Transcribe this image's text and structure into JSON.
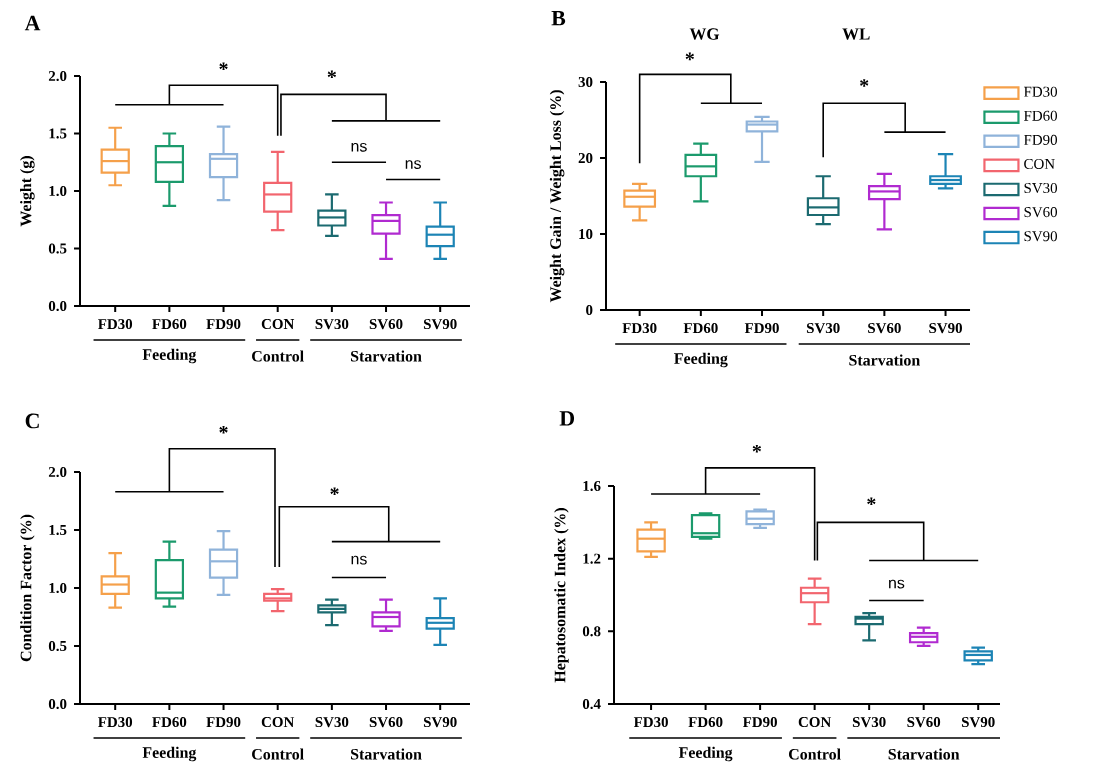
{
  "chart_data": [
    {
      "type": "box",
      "title": "A",
      "ylabel": "Weight (g)",
      "categories": [
        "FD30",
        "FD60",
        "FD90",
        "CON",
        "SV30",
        "SV60",
        "SV90"
      ],
      "series": [
        {
          "name": "FD30",
          "color": "#f5a04a",
          "boxes": [
            {
              "low": 1.05,
              "q1": 1.16,
              "median": 1.26,
              "q3": 1.36,
              "high": 1.55
            },
            null,
            null,
            null,
            null,
            null,
            null
          ]
        },
        {
          "name": "FD60",
          "color": "#1b9a6c",
          "boxes": [
            null,
            {
              "low": 0.87,
              "q1": 1.08,
              "median": 1.25,
              "q3": 1.39,
              "high": 1.5
            },
            null,
            null,
            null,
            null,
            null
          ]
        },
        {
          "name": "FD90",
          "color": "#8fb3da",
          "boxes": [
            null,
            null,
            {
              "low": 0.92,
              "q1": 1.12,
              "median": 1.28,
              "q3": 1.32,
              "high": 1.56
            },
            null,
            null,
            null,
            null
          ]
        },
        {
          "name": "CON",
          "color": "#f2656e",
          "boxes": [
            null,
            null,
            null,
            {
              "low": 0.66,
              "q1": 0.82,
              "median": 0.97,
              "q3": 1.07,
              "high": 1.34
            },
            null,
            null,
            null
          ]
        },
        {
          "name": "SV30",
          "color": "#1b6a70",
          "boxes": [
            null,
            null,
            null,
            null,
            {
              "low": 0.61,
              "q1": 0.7,
              "median": 0.77,
              "q3": 0.83,
              "high": 0.97
            },
            null,
            null
          ]
        },
        {
          "name": "SV60",
          "color": "#b02ad0",
          "boxes": [
            null,
            null,
            null,
            null,
            null,
            {
              "low": 0.41,
              "q1": 0.63,
              "median": 0.74,
              "q3": 0.79,
              "high": 0.9
            },
            null
          ]
        },
        {
          "name": "SV90",
          "color": "#1c84b5",
          "boxes": [
            null,
            null,
            null,
            null,
            null,
            null,
            {
              "low": 0.41,
              "q1": 0.52,
              "median": 0.62,
              "q3": 0.69,
              "high": 0.9
            }
          ]
        }
      ],
      "ylim": [
        0,
        2
      ],
      "yticks": [
        {
          "value": 0,
          "label": "0.0"
        },
        {
          "value": 0.5,
          "label": "0.5"
        },
        {
          "value": 1,
          "label": "1.0"
        },
        {
          "value": 1.5,
          "label": "1.5"
        },
        {
          "value": 2,
          "label": "2.0"
        }
      ],
      "legend": "right",
      "annotations": [
        "*",
        "*",
        "ns",
        "ns",
        "Feeding",
        "Control",
        "Starvation"
      ]
    },
    {
      "type": "box",
      "title": "B",
      "ylabel": "Weight Gain / Weight Loss (%)",
      "categories": [
        "FD30",
        "FD60",
        "FD90",
        "SV30",
        "SV60",
        "SV90"
      ],
      "colors": [
        "#f5a04a",
        "#1b9a6c",
        "#8fb3da",
        "#1b6a70",
        "#b02ad0",
        "#1c84b5"
      ],
      "boxes": [
        {
          "low": 11.8,
          "q1": 13.6,
          "median": 14.9,
          "q3": 15.7,
          "high": 16.6
        },
        {
          "low": 14.3,
          "q1": 17.6,
          "median": 18.9,
          "q3": 20.4,
          "high": 21.9
        },
        {
          "low": 19.5,
          "q1": 23.5,
          "median": 24.4,
          "q3": 24.8,
          "high": 25.4
        },
        {
          "low": 11.3,
          "q1": 12.5,
          "median": 13.5,
          "q3": 14.7,
          "high": 17.6
        },
        {
          "low": 10.6,
          "q1": 14.6,
          "median": 15.6,
          "q3": 16.3,
          "high": 17.9
        },
        {
          "low": 16.0,
          "q1": 16.6,
          "median": 17.1,
          "q3": 17.6,
          "high": 20.5
        }
      ],
      "ylim": [
        0,
        30
      ],
      "yticks": [
        0,
        10,
        20,
        30
      ],
      "annotations": [
        "WG",
        "WL",
        "*",
        "*",
        "Feeding",
        "Starvation"
      ]
    },
    {
      "type": "box",
      "title": "C",
      "ylabel": "Condition Factor (%)",
      "categories": [
        "FD30",
        "FD60",
        "FD90",
        "CON",
        "SV30",
        "SV60",
        "SV90"
      ],
      "colors": [
        "#f5a04a",
        "#1b9a6c",
        "#8fb3da",
        "#f2656e",
        "#1b6a70",
        "#b02ad0",
        "#1c84b5"
      ],
      "boxes": [
        {
          "low": 0.83,
          "q1": 0.95,
          "median": 1.03,
          "q3": 1.1,
          "high": 1.3
        },
        {
          "low": 0.84,
          "q1": 0.91,
          "median": 0.96,
          "q3": 1.24,
          "high": 1.4
        },
        {
          "low": 0.94,
          "q1": 1.09,
          "median": 1.23,
          "q3": 1.33,
          "high": 1.49
        },
        {
          "low": 0.8,
          "q1": 0.89,
          "median": 0.91,
          "q3": 0.95,
          "high": 0.99
        },
        {
          "low": 0.68,
          "q1": 0.79,
          "median": 0.82,
          "q3": 0.85,
          "high": 0.9
        },
        {
          "low": 0.63,
          "q1": 0.67,
          "median": 0.75,
          "q3": 0.79,
          "high": 0.9
        },
        {
          "low": 0.51,
          "q1": 0.65,
          "median": 0.7,
          "q3": 0.74,
          "high": 0.91
        }
      ],
      "ylim": [
        0,
        2
      ],
      "yticks": [
        {
          "value": 0,
          "label": "0.0"
        },
        {
          "value": 0.5,
          "label": "0.5"
        },
        {
          "value": 1,
          "label": "1.0"
        },
        {
          "value": 1.5,
          "label": "1.5"
        },
        {
          "value": 2,
          "label": "2.0"
        }
      ],
      "annotations": [
        "*",
        "*",
        "ns",
        "Feeding",
        "Control",
        "Starvation"
      ]
    },
    {
      "type": "box",
      "title": "D",
      "ylabel": "Hepatosomatic Index (%)",
      "categories": [
        "FD30",
        "FD60",
        "FD90",
        "CON",
        "SV30",
        "SV60",
        "SV90"
      ],
      "colors": [
        "#f5a04a",
        "#1b9a6c",
        "#8fb3da",
        "#f2656e",
        "#1b6a70",
        "#b02ad0",
        "#1c84b5"
      ],
      "boxes": [
        {
          "low": 1.21,
          "q1": 1.24,
          "median": 1.31,
          "q3": 1.36,
          "high": 1.4
        },
        {
          "low": 1.31,
          "q1": 1.32,
          "median": 1.34,
          "q3": 1.44,
          "high": 1.45
        },
        {
          "low": 1.37,
          "q1": 1.39,
          "median": 1.42,
          "q3": 1.46,
          "high": 1.47
        },
        {
          "low": 0.84,
          "q1": 0.96,
          "median": 1.01,
          "q3": 1.04,
          "high": 1.09
        },
        {
          "low": 0.75,
          "q1": 0.84,
          "median": 0.87,
          "q3": 0.88,
          "high": 0.9
        },
        {
          "low": 0.72,
          "q1": 0.74,
          "median": 0.77,
          "q3": 0.79,
          "high": 0.82
        },
        {
          "low": 0.62,
          "q1": 0.64,
          "median": 0.67,
          "q3": 0.69,
          "high": 0.71
        }
      ],
      "ylim": [
        0.4,
        1.6
      ],
      "yticks": [
        0.4,
        0.8,
        1.2,
        1.6
      ],
      "annotations": [
        "*",
        "*",
        "ns",
        "Feeding",
        "Control",
        "Starvation"
      ]
    }
  ]
}
